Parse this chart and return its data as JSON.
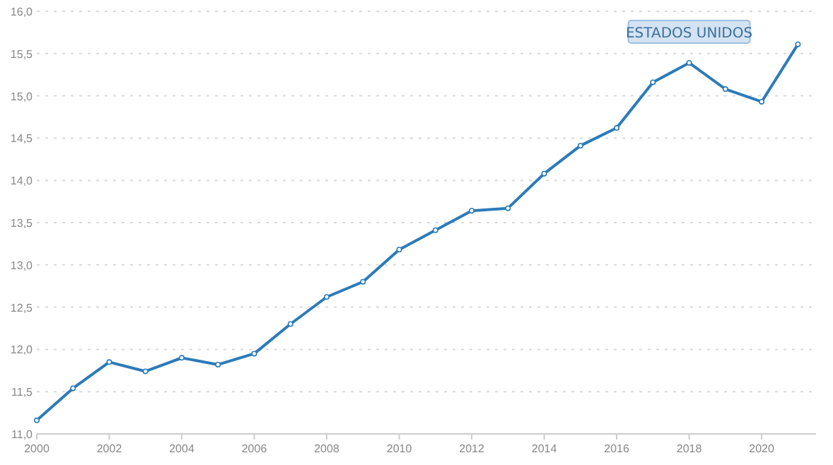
{
  "chart_data": {
    "type": "line",
    "x": [
      2000,
      2001,
      2002,
      2003,
      2004,
      2005,
      2006,
      2007,
      2008,
      2009,
      2010,
      2011,
      2012,
      2013,
      2014,
      2015,
      2016,
      2017,
      2018,
      2019,
      2020,
      2021
    ],
    "series": [
      {
        "name": "ESTADOS UNIDOS",
        "color": "#2b7bba",
        "values": [
          11.16,
          11.54,
          11.85,
          11.74,
          11.9,
          11.82,
          11.95,
          12.3,
          12.62,
          12.8,
          13.18,
          13.41,
          13.64,
          13.67,
          14.08,
          14.41,
          14.62,
          15.16,
          15.39,
          15.08,
          14.93,
          15.61
        ]
      }
    ],
    "xlim": [
      2000,
      2021.5
    ],
    "xticks": [
      2000,
      2002,
      2004,
      2006,
      2008,
      2010,
      2012,
      2014,
      2016,
      2018,
      2020
    ],
    "ylim": [
      11,
      16
    ],
    "yticks": [
      {
        "value": 11,
        "label": "11,0"
      },
      {
        "value": 11.5,
        "label": "11,5"
      },
      {
        "value": 12,
        "label": "12,0"
      },
      {
        "value": 12.5,
        "label": "12,5"
      },
      {
        "value": 13,
        "label": "13,0"
      },
      {
        "value": 13.5,
        "label": "13,5"
      },
      {
        "value": 14,
        "label": "14,0"
      },
      {
        "value": 14.5,
        "label": "14,5"
      },
      {
        "value": 15,
        "label": "15,0"
      },
      {
        "value": 15.5,
        "label": "15,5"
      },
      {
        "value": 16,
        "label": "16,0"
      }
    ],
    "grid": "y",
    "marker": "circle",
    "line_style": "solid"
  }
}
